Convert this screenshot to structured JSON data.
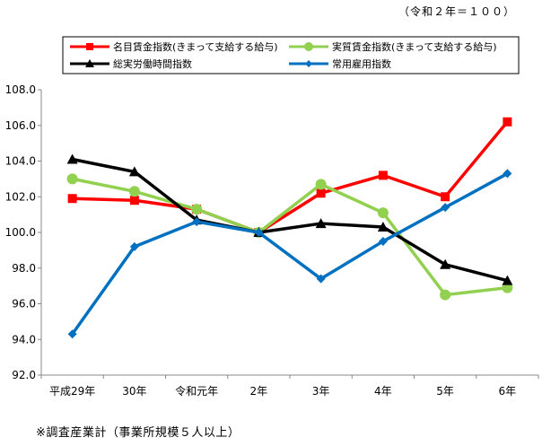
{
  "unit_note": "（令和２年＝１００）",
  "footnote": "※調査産業計（事業所規模５人以上）",
  "chart_data": {
    "type": "line",
    "title": "",
    "xlabel": "",
    "ylabel": "",
    "ylim": [
      92.0,
      108.0
    ],
    "yticks": [
      "92.0",
      "94.0",
      "96.0",
      "98.0",
      "100.0",
      "102.0",
      "104.0",
      "106.0",
      "108.0"
    ],
    "categories": [
      "平成29年",
      "30年",
      "令和元年",
      "2年",
      "3年",
      "4年",
      "5年",
      "6年"
    ],
    "grid": false,
    "legend": "top",
    "series": [
      {
        "name": "名目賃金指数(きまって支給する給与)",
        "color": "#ff0000",
        "marker": "square",
        "values": [
          101.9,
          101.8,
          101.3,
          100.0,
          102.2,
          103.2,
          102.0,
          106.2
        ]
      },
      {
        "name": "実質賃金指数(きまって支給する給与)",
        "color": "#92d050",
        "marker": "circle",
        "values": [
          103.0,
          102.3,
          101.3,
          100.0,
          102.7,
          101.1,
          96.5,
          96.9
        ]
      },
      {
        "name": "総実労働時間指数",
        "color": "#000000",
        "marker": "triangle",
        "values": [
          104.1,
          103.4,
          100.7,
          100.0,
          100.5,
          100.3,
          98.2,
          97.3
        ]
      },
      {
        "name": "常用雇用指数",
        "color": "#0070c0",
        "marker": "diamond",
        "values": [
          94.3,
          99.2,
          100.6,
          100.0,
          97.4,
          99.5,
          101.4,
          103.3
        ]
      }
    ]
  }
}
